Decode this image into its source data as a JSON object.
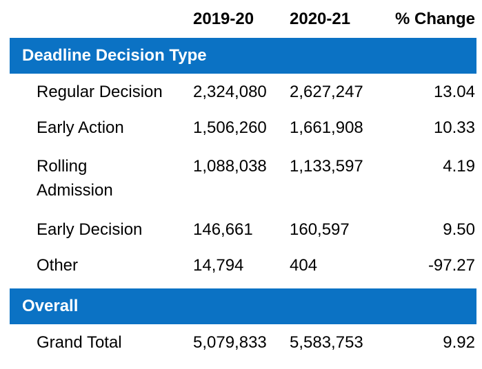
{
  "colors": {
    "accent": "#0B72C4",
    "band_text": "#FFFFFF",
    "text": "#000000"
  },
  "chart_data": {
    "type": "table",
    "columns": [
      "",
      "2019-20",
      "2020-21",
      "% Change"
    ],
    "sections": [
      {
        "header": "Deadline Decision Type",
        "rows": [
          {
            "label": "Regular Decision",
            "values": [
              "2,324,080",
              "2,627,247",
              "13.04"
            ]
          },
          {
            "label": "Early Action",
            "values": [
              "1,506,260",
              "1,661,908",
              "10.33"
            ]
          },
          {
            "label": "Rolling Admission",
            "values": [
              "1,088,038",
              "1,133,597",
              "4.19"
            ]
          },
          {
            "label": "Early Decision",
            "values": [
              "146,661",
              "160,597",
              "9.50"
            ]
          },
          {
            "label": "Other",
            "values": [
              "14,794",
              "404",
              "-97.27"
            ]
          }
        ]
      },
      {
        "header": "Overall",
        "rows": [
          {
            "label": "Grand Total",
            "values": [
              "5,079,833",
              "5,583,753",
              "9.92"
            ]
          }
        ]
      }
    ]
  }
}
